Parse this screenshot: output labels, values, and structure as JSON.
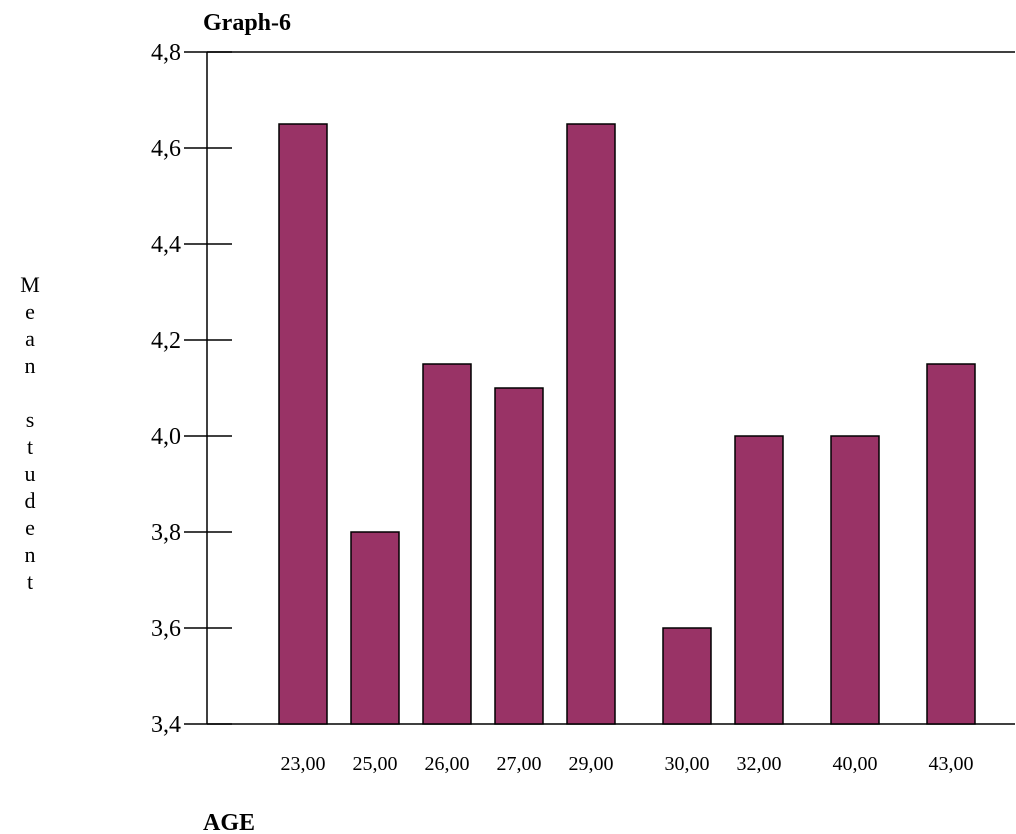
{
  "chart_data": {
    "type": "bar",
    "title": "Graph-6",
    "xlabel": "AGE",
    "ylabel": "Mean student",
    "categories": [
      "23,00",
      "25,00",
      "26,00",
      "27,00",
      "29,00",
      "30,00",
      "32,00",
      "40,00",
      "43,00"
    ],
    "values": [
      4.65,
      3.8,
      4.15,
      4.1,
      4.65,
      3.6,
      4.0,
      4.0,
      4.15
    ],
    "ylim": [
      3.4,
      4.8
    ],
    "yticks": [
      "3,4",
      "3,6",
      "3,8",
      "4,0",
      "4,2",
      "4,4",
      "4,6",
      "4,8"
    ],
    "grid": false,
    "bar_color": "#993366",
    "edge_color": "#000000"
  }
}
